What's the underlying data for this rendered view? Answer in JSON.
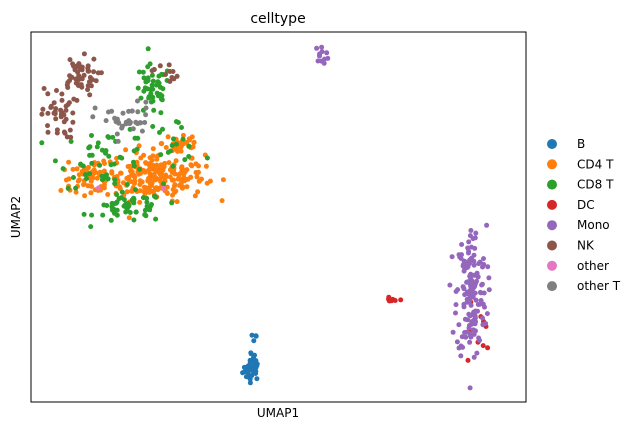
{
  "chart_data": {
    "type": "scatter",
    "title": "celltype",
    "xlabel": "UMAP1",
    "ylabel": "UMAP2",
    "xlim": [
      0,
      100
    ],
    "ylim": [
      0,
      100
    ],
    "grid": false,
    "legend_position": "right",
    "series": [
      {
        "name": "B",
        "color": "#1f77b4",
        "clusters": [
          {
            "x": 44.6,
            "y": 8.6,
            "sx": 0.9,
            "sy": 1.3,
            "n": 35
          },
          {
            "x": 45.0,
            "y": 13.5,
            "sx": 0.3,
            "sy": 3.0,
            "n": 10
          }
        ]
      },
      {
        "name": "CD4 T",
        "color": "#ff7f0e",
        "clusters": [
          {
            "x": 25.0,
            "y": 61.0,
            "sx": 5.0,
            "sy": 3.3,
            "n": 230
          },
          {
            "x": 12.0,
            "y": 60.5,
            "sx": 3.0,
            "sy": 1.8,
            "n": 60
          },
          {
            "x": 30.5,
            "y": 70.0,
            "sx": 2.0,
            "sy": 2.0,
            "n": 30
          }
        ]
      },
      {
        "name": "CD8 T",
        "color": "#2ca02c",
        "clusters": [
          {
            "x": 24.5,
            "y": 84.0,
            "sx": 1.9,
            "sy": 3.5,
            "n": 45
          },
          {
            "x": 20.0,
            "y": 52.5,
            "sx": 3.5,
            "sy": 2.0,
            "n": 55
          },
          {
            "x": 15.0,
            "y": 66.0,
            "sx": 4.5,
            "sy": 4.0,
            "n": 50
          },
          {
            "x": 28.5,
            "y": 71.0,
            "sx": 3.0,
            "sy": 3.0,
            "n": 20
          }
        ]
      },
      {
        "name": "DC",
        "color": "#d62728",
        "clusters": [
          {
            "x": 72.8,
            "y": 27.2,
            "sx": 0.6,
            "sy": 0.5,
            "n": 8
          },
          {
            "x": 89.8,
            "y": 18.0,
            "sx": 1.8,
            "sy": 6.0,
            "n": 9
          }
        ]
      },
      {
        "name": "Mono",
        "color": "#9467bd",
        "clusters": [
          {
            "x": 58.8,
            "y": 94.0,
            "sx": 0.7,
            "sy": 1.1,
            "n": 12
          },
          {
            "x": 89.0,
            "y": 29.5,
            "sx": 1.5,
            "sy": 9.0,
            "n": 160
          }
        ]
      },
      {
        "name": "NK",
        "color": "#8c564b",
        "clusters": [
          {
            "x": 9.5,
            "y": 88.0,
            "sx": 2.0,
            "sy": 2.6,
            "n": 50
          },
          {
            "x": 5.5,
            "y": 78.0,
            "sx": 1.7,
            "sy": 3.5,
            "n": 40
          },
          {
            "x": 27.0,
            "y": 89.0,
            "sx": 1.3,
            "sy": 1.5,
            "n": 12
          }
        ]
      },
      {
        "name": "other",
        "color": "#e377c2",
        "clusters": [
          {
            "x": 14.0,
            "y": 58.0,
            "sx": 0.3,
            "sy": 0.3,
            "n": 1
          },
          {
            "x": 27.0,
            "y": 58.0,
            "sx": 0.3,
            "sy": 0.3,
            "n": 1
          }
        ]
      },
      {
        "name": "other T",
        "color": "#7f7f7f",
        "clusters": [
          {
            "x": 19.0,
            "y": 76.0,
            "sx": 3.0,
            "sy": 2.5,
            "n": 35
          }
        ]
      }
    ]
  }
}
